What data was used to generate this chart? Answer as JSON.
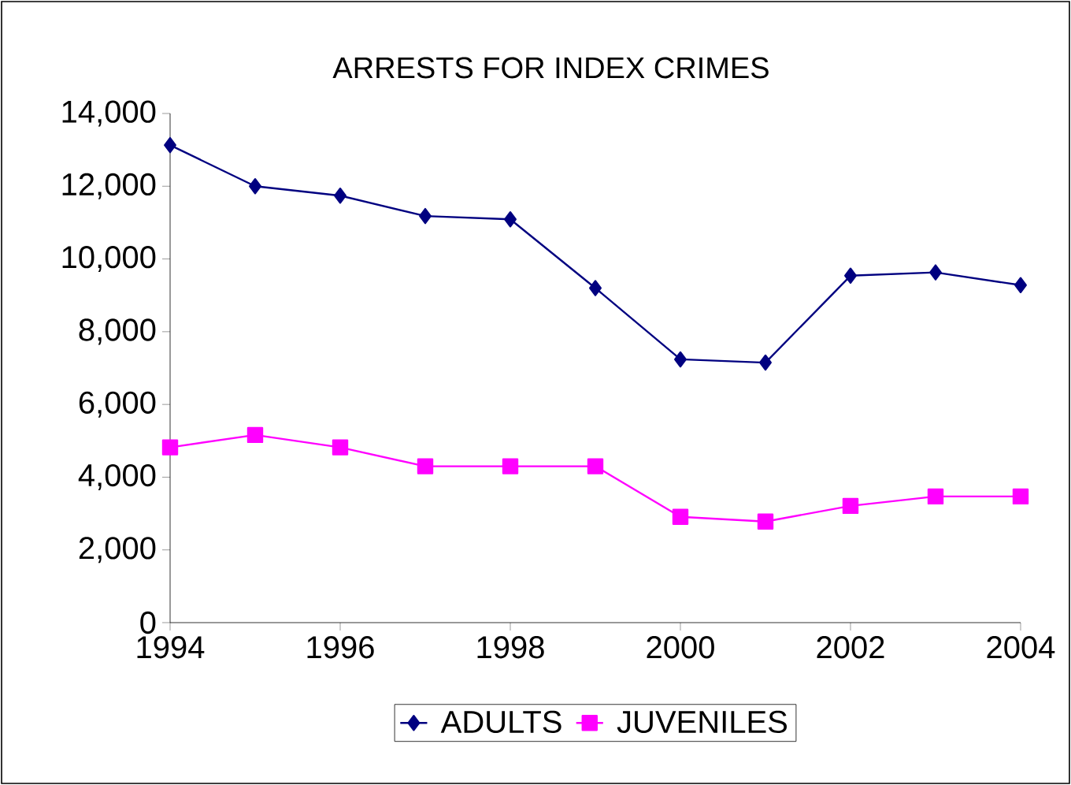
{
  "chart_data": {
    "type": "line",
    "title": "ARRESTS FOR INDEX CRIMES",
    "x": [
      1994,
      1995,
      1996,
      1997,
      1998,
      1999,
      2000,
      2001,
      2002,
      2003,
      2004
    ],
    "series": [
      {
        "name": "ADULTS",
        "color": "#000080",
        "marker": "diamond",
        "values": [
          13130,
          12000,
          11740,
          11180,
          11090,
          9200,
          7240,
          7150,
          9540,
          9630,
          9280
        ]
      },
      {
        "name": "JUVENILES",
        "color": "#ff00ff",
        "marker": "square",
        "values": [
          4820,
          5160,
          4820,
          4300,
          4300,
          4300,
          2910,
          2780,
          3210,
          3470,
          3470
        ]
      }
    ],
    "xlim": [
      1994,
      2004
    ],
    "xticks": [
      1994,
      1996,
      1998,
      2000,
      2002,
      2004
    ],
    "ylim": [
      0,
      14000
    ],
    "yticks": [
      0,
      {
        "value": 2000,
        "label": "2,000"
      },
      {
        "value": 4000,
        "label": "4,000"
      },
      {
        "value": 6000,
        "label": "6,000"
      },
      {
        "value": 8000,
        "label": "8,000"
      },
      {
        "value": 10000,
        "label": "10,000"
      },
      {
        "value": 12000,
        "label": "12,000"
      },
      {
        "value": 14000,
        "label": "14,000"
      }
    ],
    "grid": false,
    "legend": "bottom",
    "line_style": "solid"
  }
}
